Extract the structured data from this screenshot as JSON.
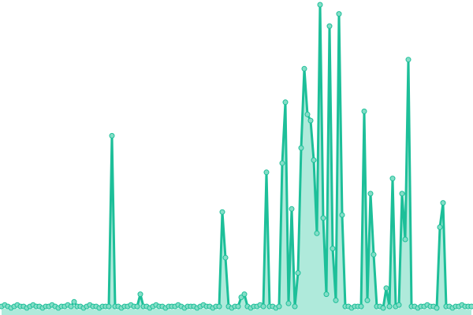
{
  "chart_data": {
    "type": "line",
    "title": "",
    "xlabel": "",
    "ylabel": "",
    "grid": false,
    "legend": "none",
    "axes_visible": false,
    "ylim": [
      0,
      100
    ],
    "colors": {
      "line": "#1dbf99",
      "marker_fill": "#84dec7",
      "area": "#9be5d2"
    },
    "values": [
      1,
      1.5,
      1,
      0.5,
      1,
      1.5,
      1,
      1,
      0.5,
      1,
      1.5,
      1,
      1,
      0.5,
      1,
      1,
      1.5,
      1,
      0.5,
      1,
      1,
      1.5,
      1,
      2.5,
      1,
      1,
      0.5,
      1,
      1.5,
      1,
      1,
      0.5,
      1,
      1,
      1,
      57,
      1,
      1,
      0.5,
      1,
      1,
      1.5,
      1,
      1,
      5,
      1,
      1,
      0.5,
      1,
      1.5,
      1,
      1,
      0.5,
      1,
      1,
      1,
      1.5,
      1,
      0.5,
      1,
      1,
      1,
      0.5,
      1,
      1.5,
      1,
      1,
      0.5,
      1,
      1,
      32,
      17,
      1,
      0.5,
      1,
      1,
      4,
      5,
      1,
      0.5,
      1,
      1,
      1.5,
      1,
      45,
      1,
      1,
      0.5,
      1,
      48,
      68,
      2,
      33,
      1,
      12,
      53,
      79,
      64,
      62,
      49,
      25,
      100,
      30,
      5,
      93,
      20,
      3,
      97,
      31,
      1,
      1,
      0.5,
      1,
      1,
      1,
      65,
      3,
      38,
      18,
      1,
      1,
      0.5,
      7,
      1,
      43,
      1,
      1.5,
      38,
      23,
      82,
      1,
      1,
      0.5,
      1,
      1,
      1.5,
      1,
      1,
      0.5,
      27,
      35,
      1,
      1,
      0.5,
      1,
      1,
      1.5,
      1,
      1,
      1
    ]
  }
}
